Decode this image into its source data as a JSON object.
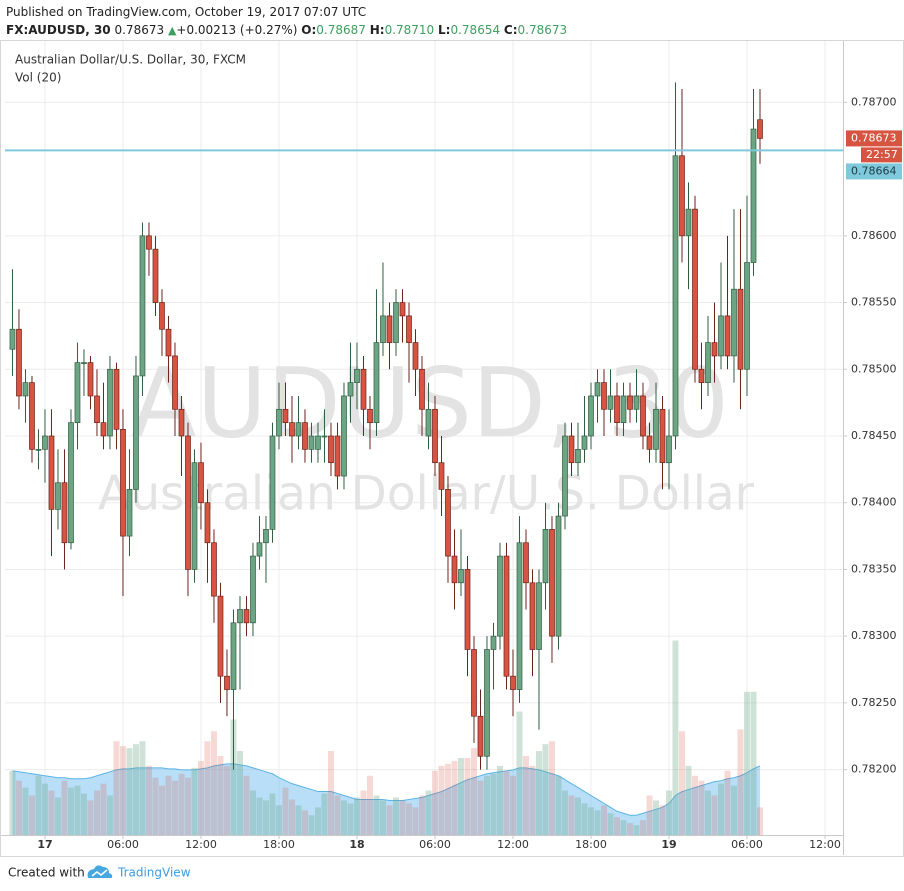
{
  "header": {
    "published": "Published on TradingView.com, October 19, 2017 07:07 UTC",
    "symbol": "FX:AUDUSD, 30",
    "last": "0.78673",
    "change": "+0.00213 (+0.27%)",
    "ohlc": [
      {
        "label": "O:",
        "value": "0.78687"
      },
      {
        "label": "H:",
        "value": "0.78710"
      },
      {
        "label": "L:",
        "value": "0.78654"
      },
      {
        "label": "C:",
        "value": "0.78673"
      }
    ]
  },
  "footer": {
    "created_with": "Created with",
    "brand": "TradingView"
  },
  "chart_data": {
    "type": "candlestick",
    "title": "Australian Dollar/U.S. Dollar, 30, FXCM",
    "subtitle": "Vol (20)",
    "watermark": [
      "AUDUSD, 30",
      "Australian Dollar/U.S. Dollar"
    ],
    "grid": true,
    "up_color": "#6ba583",
    "down_color": "#d75442",
    "xlim": [
      -1.15,
      127.77
    ],
    "xticks": [
      {
        "value": 5,
        "label": "17"
      },
      {
        "value": 17,
        "label": "06:00"
      },
      {
        "value": 29,
        "label": "12:00"
      },
      {
        "value": 41,
        "label": "18:00"
      },
      {
        "value": 53,
        "label": "18"
      },
      {
        "value": 65,
        "label": "06:00"
      },
      {
        "value": 77,
        "label": "12:00"
      },
      {
        "value": 89,
        "label": "18:00"
      },
      {
        "value": 101,
        "label": "19"
      },
      {
        "value": 113,
        "label": "06:00"
      },
      {
        "value": 125,
        "label": "12:00"
      }
    ],
    "ylim": [
      0.78151,
      0.78743
    ],
    "yticks": [
      {
        "value": 0.782,
        "label": "0.78200"
      },
      {
        "value": 0.7825,
        "label": "0.78250"
      },
      {
        "value": 0.783,
        "label": "0.78300"
      },
      {
        "value": 0.7835,
        "label": "0.78350"
      },
      {
        "value": 0.784,
        "label": "0.78400"
      },
      {
        "value": 0.7845,
        "label": "0.78450"
      },
      {
        "value": 0.785,
        "label": "0.78500"
      },
      {
        "value": 0.7855,
        "label": "0.78550"
      },
      {
        "value": 0.786,
        "label": "0.78600"
      },
      {
        "value": 0.787,
        "label": "0.78700"
      }
    ],
    "open": [
      0.78515,
      0.7853,
      0.7848,
      0.7849,
      0.7844,
      0.7844,
      0.7845,
      0.78395,
      0.78415,
      0.7837,
      0.7846,
      0.78505,
      0.78505,
      0.7848,
      0.7846,
      0.7845,
      0.785,
      0.78455,
      0.78375,
      0.7841,
      0.78495,
      0.786,
      0.7859,
      0.7855,
      0.7853,
      0.7851,
      0.7847,
      0.7845,
      0.7835,
      0.7843,
      0.784,
      0.7837,
      0.7833,
      0.7827,
      0.7826,
      0.7831,
      0.7832,
      0.7831,
      0.7836,
      0.7837,
      0.7838,
      0.7845,
      0.7847,
      0.7846,
      0.7845,
      0.7846,
      0.7844,
      0.7844,
      0.7845,
      0.7845,
      0.7845,
      0.7842,
      0.7848,
      0.7849,
      0.785,
      0.7847,
      0.7846,
      0.7852,
      0.7854,
      0.7852,
      0.7855,
      0.7854,
      0.7852,
      0.785,
      0.7845,
      0.7847,
      0.7843,
      0.7841,
      0.7836,
      0.7834,
      0.7835,
      0.7829,
      0.7824,
      0.7821,
      0.7829,
      0.783,
      0.7836,
      0.7827,
      0.7826,
      0.7837,
      0.7834,
      0.7829,
      0.7834,
      0.7838,
      0.783,
      0.7839,
      0.7845,
      0.7843,
      0.7844,
      0.7845,
      0.7848,
      0.7849,
      0.7847,
      0.7848,
      0.7846,
      0.7848,
      0.7847,
      0.7848,
      0.7845,
      0.7844,
      0.7847,
      0.7843,
      0.7845,
      0.7866,
      0.786,
      0.7862,
      0.785,
      0.7849,
      0.7852,
      0.7851,
      0.7854,
      0.7851,
      0.7856,
      0.785,
      0.7858,
      0.78687
    ],
    "high": [
      0.78575,
      0.78545,
      0.785,
      0.78495,
      0.78455,
      0.7847,
      0.7847,
      0.7844,
      0.7844,
      0.7847,
      0.7852,
      0.78515,
      0.7851,
      0.785,
      0.7849,
      0.7851,
      0.78505,
      0.7847,
      0.7844,
      0.7851,
      0.7861,
      0.7861,
      0.786,
      0.7856,
      0.7854,
      0.7852,
      0.7848,
      0.7846,
      0.7844,
      0.78445,
      0.7841,
      0.7838,
      0.7834,
      0.7829,
      0.7832,
      0.7833,
      0.7833,
      0.7837,
      0.7839,
      0.7839,
      0.7846,
      0.7849,
      0.7849,
      0.7848,
      0.7848,
      0.7847,
      0.7846,
      0.7846,
      0.7847,
      0.7846,
      0.7846,
      0.7849,
      0.7852,
      0.7852,
      0.7851,
      0.7848,
      0.7856,
      0.7858,
      0.7855,
      0.7856,
      0.7856,
      0.7855,
      0.7853,
      0.7851,
      0.7849,
      0.7848,
      0.7845,
      0.7842,
      0.7838,
      0.7838,
      0.7836,
      0.783,
      0.7826,
      0.783,
      0.7831,
      0.7837,
      0.7837,
      0.7829,
      0.7839,
      0.7838,
      0.7835,
      0.7835,
      0.784,
      0.7839,
      0.784,
      0.7846,
      0.7846,
      0.7846,
      0.7848,
      0.7849,
      0.785,
      0.785,
      0.785,
      0.7849,
      0.7849,
      0.7849,
      0.785,
      0.7849,
      0.7846,
      0.7849,
      0.7848,
      0.7847,
      0.78715,
      0.7871,
      0.7864,
      0.7863,
      0.7852,
      0.7854,
      0.7855,
      0.7858,
      0.786,
      0.7862,
      0.7862,
      0.7863,
      0.7871,
      0.7871
    ],
    "low": [
      0.78495,
      0.7847,
      0.7846,
      0.7843,
      0.78425,
      0.78415,
      0.7836,
      0.7838,
      0.7835,
      0.78365,
      0.7844,
      0.7848,
      0.7847,
      0.7845,
      0.7844,
      0.7844,
      0.7844,
      0.7833,
      0.7836,
      0.784,
      0.7848,
      0.7857,
      0.7854,
      0.7851,
      0.7849,
      0.7845,
      0.7842,
      0.7833,
      0.7834,
      0.7838,
      0.7834,
      0.7831,
      0.7825,
      0.7824,
      0.782,
      0.7826,
      0.783,
      0.783,
      0.7835,
      0.7834,
      0.7837,
      0.7844,
      0.7845,
      0.7843,
      0.7844,
      0.7843,
      0.7843,
      0.7843,
      0.7843,
      0.7842,
      0.7841,
      0.7841,
      0.7846,
      0.7847,
      0.7845,
      0.7844,
      0.7845,
      0.7851,
      0.785,
      0.7851,
      0.7852,
      0.7849,
      0.7848,
      0.7845,
      0.7844,
      0.7842,
      0.7839,
      0.7834,
      0.7832,
      0.7833,
      0.7827,
      0.7822,
      0.782,
      0.782,
      0.7826,
      0.7829,
      0.7826,
      0.7824,
      0.7825,
      0.7832,
      0.7827,
      0.7823,
      0.7832,
      0.7828,
      0.7829,
      0.7838,
      0.7842,
      0.7842,
      0.7843,
      0.7844,
      0.7846,
      0.7845,
      0.7846,
      0.7845,
      0.7845,
      0.7846,
      0.7846,
      0.7844,
      0.7843,
      0.7843,
      0.7841,
      0.7841,
      0.7844,
      0.7858,
      0.7856,
      0.7849,
      0.7847,
      0.7848,
      0.7849,
      0.785,
      0.785,
      0.7849,
      0.7847,
      0.7848,
      0.7857,
      0.78654
    ],
    "close": [
      0.7853,
      0.7848,
      0.7849,
      0.7844,
      0.7844,
      0.7845,
      0.78395,
      0.78415,
      0.7837,
      0.7846,
      0.78505,
      0.78505,
      0.7848,
      0.7846,
      0.7845,
      0.785,
      0.78455,
      0.78375,
      0.7841,
      0.78495,
      0.786,
      0.7859,
      0.7855,
      0.7853,
      0.7851,
      0.7847,
      0.7845,
      0.7835,
      0.7843,
      0.784,
      0.7837,
      0.7833,
      0.7827,
      0.7826,
      0.7831,
      0.7832,
      0.7831,
      0.7836,
      0.7837,
      0.7838,
      0.7845,
      0.7847,
      0.7846,
      0.7845,
      0.7846,
      0.7844,
      0.7845,
      0.7845,
      0.7845,
      0.7843,
      0.7842,
      0.7848,
      0.7849,
      0.785,
      0.7847,
      0.7846,
      0.7852,
      0.7854,
      0.7852,
      0.7855,
      0.7854,
      0.7852,
      0.785,
      0.7847,
      0.7847,
      0.7843,
      0.7841,
      0.7836,
      0.7834,
      0.7835,
      0.7829,
      0.7824,
      0.7821,
      0.7829,
      0.783,
      0.7836,
      0.7827,
      0.7826,
      0.7837,
      0.7834,
      0.7829,
      0.7834,
      0.7838,
      0.783,
      0.7839,
      0.7845,
      0.7843,
      0.7844,
      0.7845,
      0.7848,
      0.7849,
      0.7847,
      0.7848,
      0.7846,
      0.7848,
      0.7847,
      0.7848,
      0.7845,
      0.7844,
      0.7847,
      0.7843,
      0.7845,
      0.7866,
      0.786,
      0.7862,
      0.785,
      0.7849,
      0.7852,
      0.7851,
      0.7854,
      0.7851,
      0.7856,
      0.785,
      0.7858,
      0.7868,
      0.78673
    ],
    "volume": {
      "lim": [
        0,
        800
      ],
      "up_color": "rgba(107,165,131,0.32)",
      "down_color": "rgba(215,84,66,0.22)",
      "ma_color": "#5ab4e6",
      "ma_fill": "rgba(100,185,240,0.45)",
      "values": [
        65,
        55,
        48,
        40,
        60,
        52,
        45,
        38,
        55,
        48,
        50,
        42,
        35,
        45,
        52,
        40,
        95,
        90,
        88,
        92,
        95,
        70,
        58,
        50,
        60,
        55,
        62,
        58,
        68,
        75,
        95,
        105,
        80,
        70,
        117,
        85,
        60,
        45,
        38,
        35,
        42,
        30,
        48,
        36,
        30,
        25,
        20,
        28,
        42,
        85,
        40,
        35,
        32,
        38,
        45,
        60,
        40,
        35,
        30,
        38,
        35,
        32,
        28,
        40,
        45,
        65,
        70,
        72,
        75,
        78,
        78,
        88,
        55,
        60,
        62,
        70,
        65,
        60,
        125,
        80,
        70,
        85,
        92,
        95,
        60,
        45,
        40,
        38,
        32,
        28,
        25,
        30,
        22,
        18,
        15,
        12,
        10,
        15,
        40,
        35,
        30,
        45,
        197,
        105,
        70,
        60,
        55,
        45,
        40,
        52,
        65,
        50,
        107,
        145,
        145,
        28
      ],
      "ma": [
        65,
        64,
        63,
        62,
        61,
        60,
        59,
        58,
        58,
        57,
        57,
        57,
        58,
        60,
        62,
        64,
        66,
        67,
        67,
        68,
        68,
        68,
        68,
        68,
        67,
        67,
        66,
        66,
        66,
        67,
        68,
        70,
        71,
        72,
        72,
        71,
        70,
        68,
        66,
        64,
        62,
        58,
        55,
        52,
        50,
        48,
        46,
        44,
        44,
        44,
        42,
        40,
        38,
        36,
        36,
        36,
        36,
        36,
        35,
        35,
        35,
        36,
        37,
        38,
        40,
        42,
        44,
        47,
        50,
        53,
        56,
        58,
        60,
        62,
        63,
        64,
        65,
        66,
        68,
        68,
        67,
        66,
        64,
        62,
        60,
        56,
        52,
        48,
        44,
        40,
        36,
        32,
        28,
        24,
        22,
        20,
        20,
        22,
        24,
        26,
        28,
        32,
        40,
        44,
        46,
        48,
        50,
        52,
        54,
        55,
        57,
        58,
        60,
        63,
        67,
        70
      ]
    },
    "last_price": {
      "value": 0.78673,
      "label": "0.78673",
      "countdown": "22:57",
      "color": "#d75442"
    },
    "hline": {
      "value": 0.78664,
      "label": "0.78664",
      "color": "#7fc9dc"
    }
  }
}
